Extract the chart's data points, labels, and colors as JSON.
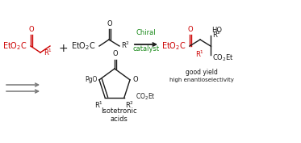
{
  "bg_color": "#ffffff",
  "figsize": [
    3.73,
    1.77
  ],
  "dpi": 100,
  "red": "#cc0000",
  "green": "#1a8a1a",
  "black": "#1a1a1a",
  "gray": "#777777",
  "arrow_label1": "Chiral",
  "arrow_label2": "catalyst",
  "good_yield": "good yield",
  "high_enantio": "high enantioselectivity",
  "isotetronic": "Isotetronic",
  "acids": "acids"
}
